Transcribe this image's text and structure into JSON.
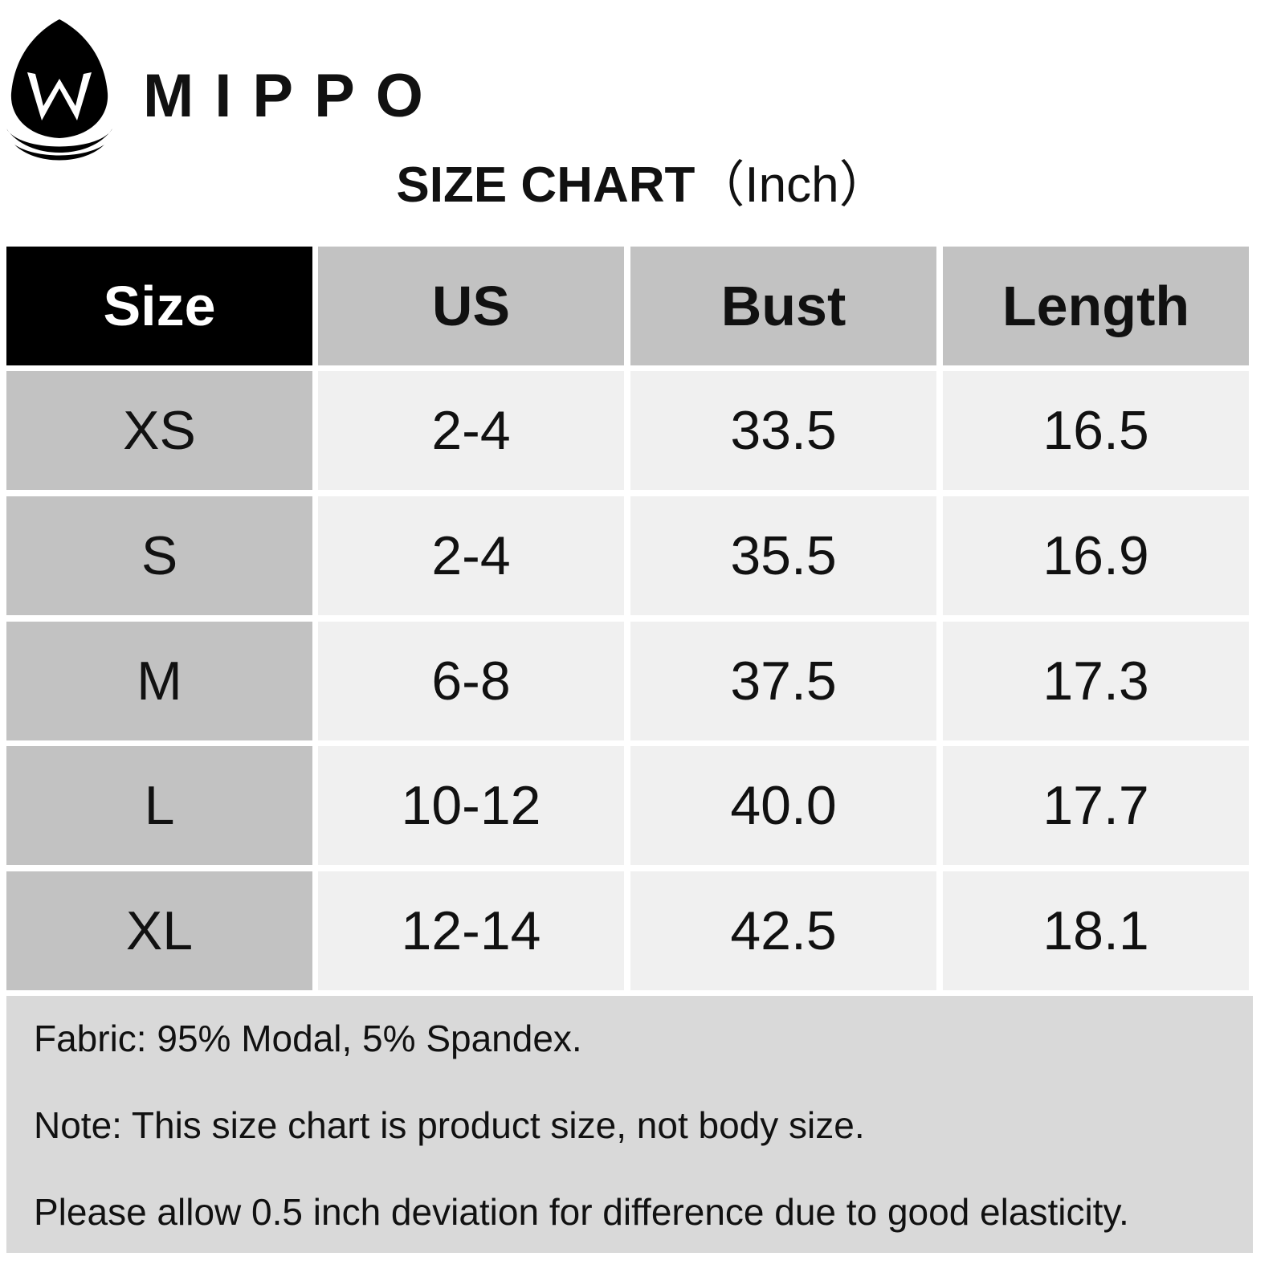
{
  "header": {
    "brand": "MIPPO",
    "title": "SIZE CHART",
    "unit": "（Inch）"
  },
  "table": {
    "columns": [
      "Size",
      "US",
      "Bust",
      "Length"
    ],
    "rows": [
      [
        "XS",
        "2-4",
        "33.5",
        "16.5"
      ],
      [
        "S",
        "2-4",
        "35.5",
        "16.9"
      ],
      [
        "M",
        "6-8",
        "37.5",
        "17.3"
      ],
      [
        "L",
        "10-12",
        "40.0",
        "17.7"
      ],
      [
        "XL",
        "12-14",
        "42.5",
        "18.1"
      ]
    ]
  },
  "notes": [
    "Fabric: 95% Modal, 5% Spandex.",
    "Note: This size chart is product size, not body size.",
    "Please allow 0.5 inch deviation for difference due to good elasticity."
  ]
}
